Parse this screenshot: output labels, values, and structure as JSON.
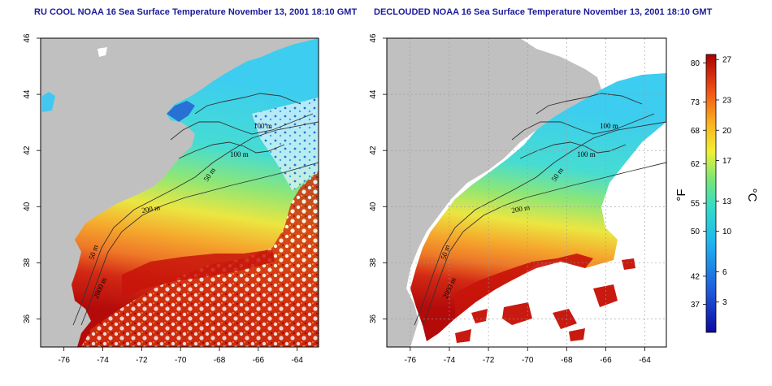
{
  "maps": [
    {
      "title": "RU COOL NOAA 16 Sea Surface Temperature November 13, 2001 18:10 GMT",
      "contour_labels": [
        "100 m",
        "100 m",
        "50 m",
        "200 m",
        "50 m",
        "2000 m"
      ]
    },
    {
      "title": "DECLOUDED NOAA 16 Sea Surface Temperature November 13, 2001 18:10 GMT",
      "contour_labels": [
        "100 m",
        "100 m",
        "50 m",
        "200 m",
        "50 m",
        "2000 m"
      ]
    }
  ],
  "axes": {
    "lon_ticks": [
      "-76",
      "-74",
      "-72",
      "-70",
      "-68",
      "-66",
      "-64"
    ],
    "lat_ticks": [
      "46",
      "44",
      "42",
      "40",
      "38",
      "36"
    ],
    "lon_range": [
      -77.2,
      -62.9
    ],
    "lat_range": [
      35.0,
      46.0
    ]
  },
  "colorbar": {
    "fahrenheit_label": "°F",
    "celsius_label": "°C",
    "fahrenheit_ticks": [
      "80",
      "73",
      "68",
      "62",
      "55",
      "50",
      "42",
      "37"
    ],
    "celsius_ticks": [
      "27",
      "23",
      "20",
      "17",
      "13",
      "10",
      "6",
      "3"
    ],
    "range_c": [
      0,
      27.5
    ]
  },
  "colors": {
    "land": "#c0c0c0",
    "title": "#1a1a9a",
    "cold": "#0a0aa0",
    "warm": "#b00000"
  }
}
